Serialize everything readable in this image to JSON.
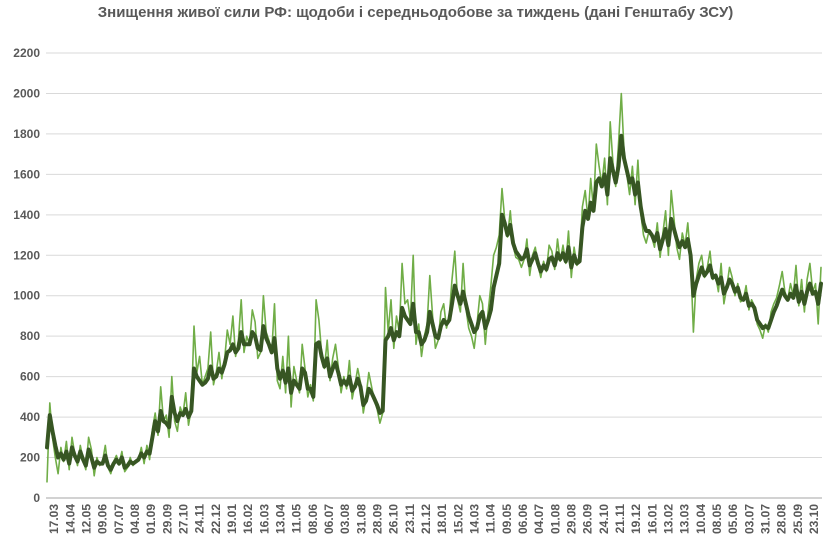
{
  "chart_data": {
    "type": "line",
    "title": "Знищення живої сили РФ: щодоби і середньодобове за тиждень (дані Генштабу ЗСУ)",
    "xlabel": "",
    "ylabel": "",
    "ylim": [
      0,
      2200
    ],
    "yticks": [
      "0",
      "200",
      "400",
      "600",
      "800",
      "1000",
      "1200",
      "1400",
      "1600",
      "1800",
      "2000",
      "2200"
    ],
    "grid": "horizontal",
    "legend": "none",
    "x_tick_labels": [
      "17.03",
      "14.04",
      "12.05",
      "09.06",
      "07.07",
      "04.08",
      "01.09",
      "29.09",
      "27.10",
      "24.11",
      "22.12",
      "19.01",
      "16.02",
      "16.03",
      "13.04",
      "11.05",
      "08.06",
      "06.07",
      "03.08",
      "31.08",
      "28.09",
      "26.10",
      "23.11",
      "21.12",
      "18.01",
      "15.02",
      "14.03",
      "11.04",
      "09.05",
      "06.06",
      "04.07",
      "01.08",
      "29.08",
      "26.09",
      "24.10",
      "21.11",
      "19.12",
      "16.01",
      "13.02",
      "13.03",
      "10.04",
      "08.05",
      "05.06",
      "03.07",
      "31.07",
      "28.08",
      "25.09",
      "23.10"
    ],
    "colors": {
      "daily": "#70ad47",
      "weekly_avg": "#375623"
    },
    "series": [
      {
        "key": "daily",
        "values": [
          80,
          470,
          300,
          200,
          120,
          250,
          180,
          280,
          140,
          300,
          220,
          160,
          260,
          190,
          140,
          300,
          240,
          110,
          200,
          160,
          180,
          260,
          150,
          120,
          180,
          210,
          170,
          230,
          130,
          150,
          200,
          160,
          180,
          190,
          250,
          170,
          260,
          190,
          340,
          420,
          310,
          550,
          380,
          410,
          300,
          600,
          380,
          330,
          450,
          410,
          520,
          360,
          440,
          850,
          620,
          700,
          560,
          600,
          640,
          820,
          560,
          620,
          720,
          590,
          680,
          830,
          760,
          900,
          700,
          780,
          980,
          720,
          800,
          760,
          930,
          870,
          690,
          720,
          1000,
          820,
          780,
          720,
          960,
          580,
          540,
          700,
          520,
          800,
          450,
          650,
          580,
          520,
          760,
          640,
          500,
          560,
          480,
          980,
          880,
          720,
          640,
          780,
          580,
          690,
          760,
          650,
          520,
          600,
          540,
          680,
          490,
          560,
          640,
          570,
          420,
          500,
          620,
          550,
          480,
          440,
          370,
          420,
          1040,
          820,
          980,
          740,
          900,
          820,
          1160,
          960,
          980,
          880,
          1200,
          760,
          860,
          700,
          800,
          860,
          1100,
          900,
          740,
          780,
          920,
          960,
          840,
          900,
          1080,
          1220,
          980,
          920,
          1160,
          940,
          840,
          800,
          740,
          860,
          1000,
          960,
          760,
          920,
          1050,
          1200,
          1240,
          1300,
          1530,
          1380,
          1290,
          1420,
          1250,
          1190,
          1180,
          1140,
          1180,
          1280,
          1100,
          1200,
          1240,
          1150,
          1090,
          1170,
          1120,
          1250,
          1220,
          1130,
          1280,
          1170,
          1250,
          1160,
          1320,
          1090,
          1240,
          1150,
          1180,
          1440,
          1520,
          1380,
          1580,
          1430,
          1750,
          1640,
          1550,
          1680,
          1450,
          1860,
          1660,
          1540,
          1750,
          2000,
          1720,
          1600,
          1500,
          1640,
          1450,
          1670,
          1410,
          1300,
          1260,
          1320,
          1290,
          1240,
          1360,
          1190,
          1310,
          1420,
          1200,
          1520,
          1380,
          1240,
          1180,
          1310,
          1250,
          1360,
          1180,
          820,
          1080,
          1160,
          1200,
          1090,
          1140,
          1220,
          1080,
          1100,
          1020,
          1160,
          960,
          1040,
          1140,
          1090,
          1000,
          1060,
          970,
          980,
          1050,
          930,
          980,
          950,
          860,
          830,
          790,
          860,
          820,
          920,
          960,
          990,
          1050,
          1120,
          1020,
          980,
          1060,
          1000,
          1150,
          950,
          1080,
          920,
          1080,
          1160,
          1020,
          1060,
          860,
          1140
        ]
      },
      {
        "key": "weekly_avg",
        "values": [
          250,
          410,
          330,
          260,
          200,
          220,
          190,
          230,
          170,
          250,
          210,
          180,
          230,
          190,
          160,
          240,
          200,
          150,
          180,
          170,
          170,
          210,
          160,
          140,
          170,
          190,
          170,
          200,
          150,
          160,
          180,
          170,
          180,
          190,
          220,
          200,
          230,
          220,
          300,
          380,
          330,
          430,
          380,
          370,
          350,
          500,
          420,
          380,
          420,
          410,
          440,
          400,
          430,
          640,
          600,
          580,
          560,
          570,
          590,
          650,
          590,
          600,
          640,
          620,
          660,
          720,
          730,
          760,
          720,
          740,
          820,
          760,
          760,
          760,
          820,
          800,
          740,
          730,
          850,
          790,
          760,
          720,
          790,
          640,
          590,
          630,
          570,
          640,
          520,
          580,
          560,
          540,
          640,
          620,
          540,
          540,
          500,
          760,
          770,
          700,
          650,
          690,
          600,
          640,
          670,
          620,
          560,
          580,
          560,
          600,
          530,
          550,
          590,
          550,
          460,
          480,
          540,
          520,
          490,
          460,
          420,
          430,
          780,
          800,
          840,
          780,
          820,
          800,
          940,
          900,
          880,
          860,
          960,
          820,
          820,
          760,
          780,
          820,
          920,
          860,
          800,
          790,
          850,
          880,
          860,
          880,
          960,
          1050,
          1000,
          960,
          1020,
          960,
          900,
          860,
          820,
          840,
          900,
          920,
          840,
          880,
          930,
          1040,
          1100,
          1160,
          1400,
          1360,
          1300,
          1350,
          1260,
          1220,
          1200,
          1180,
          1190,
          1230,
          1150,
          1180,
          1210,
          1160,
          1120,
          1150,
          1130,
          1180,
          1190,
          1150,
          1210,
          1180,
          1210,
          1170,
          1240,
          1140,
          1200,
          1160,
          1170,
          1340,
          1420,
          1380,
          1460,
          1420,
          1560,
          1580,
          1540,
          1600,
          1500,
          1680,
          1620,
          1560,
          1640,
          1790,
          1680,
          1620,
          1560,
          1580,
          1500,
          1560,
          1440,
          1360,
          1320,
          1320,
          1300,
          1270,
          1310,
          1230,
          1280,
          1330,
          1250,
          1380,
          1330,
          1280,
          1240,
          1270,
          1240,
          1280,
          1200,
          1000,
          1060,
          1100,
          1140,
          1100,
          1120,
          1150,
          1090,
          1100,
          1060,
          1090,
          1010,
          1040,
          1080,
          1060,
          1020,
          1040,
          990,
          980,
          1010,
          950,
          960,
          940,
          880,
          860,
          840,
          850,
          840,
          880,
          920,
          950,
          990,
          1030,
          1000,
          980,
          1010,
          990,
          1050,
          970,
          1020,
          960,
          1020,
          1060,
          1010,
          1020,
          960,
          1060
        ]
      }
    ]
  }
}
